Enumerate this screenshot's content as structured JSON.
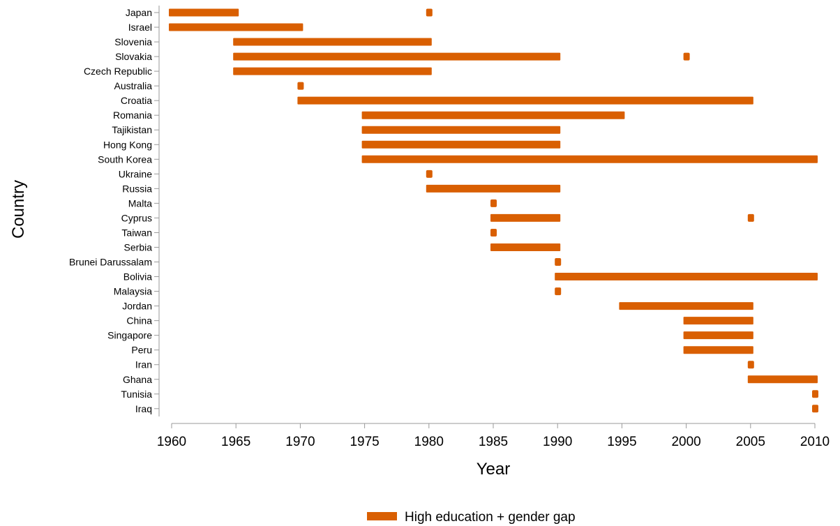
{
  "chart_data": {
    "type": "bar",
    "orientation": "horizontal-range",
    "title": "",
    "xlabel": "Year",
    "ylabel": "Country",
    "xlim": [
      1960,
      2010
    ],
    "xticks": [
      1960,
      1965,
      1970,
      1975,
      1980,
      1985,
      1990,
      1995,
      2000,
      2005,
      2010
    ],
    "grid": false,
    "legend_position": "bottom",
    "series": [
      {
        "name": "High education + gender gap",
        "color": "#d95f02",
        "rows": [
          {
            "country": "Japan",
            "ranges": [
              [
                1960,
                1965
              ],
              [
                1980,
                1980
              ]
            ]
          },
          {
            "country": "Israel",
            "ranges": [
              [
                1960,
                1970
              ]
            ]
          },
          {
            "country": "Slovenia",
            "ranges": [
              [
                1965,
                1980
              ]
            ]
          },
          {
            "country": "Slovakia",
            "ranges": [
              [
                1965,
                1990
              ],
              [
                2000,
                2000
              ]
            ]
          },
          {
            "country": "Czech Republic",
            "ranges": [
              [
                1965,
                1980
              ]
            ]
          },
          {
            "country": "Australia",
            "ranges": [
              [
                1970,
                1970
              ]
            ]
          },
          {
            "country": "Croatia",
            "ranges": [
              [
                1970,
                2005
              ]
            ]
          },
          {
            "country": "Romania",
            "ranges": [
              [
                1975,
                1995
              ]
            ]
          },
          {
            "country": "Tajikistan",
            "ranges": [
              [
                1975,
                1990
              ]
            ]
          },
          {
            "country": "Hong Kong",
            "ranges": [
              [
                1975,
                1990
              ]
            ]
          },
          {
            "country": "South Korea",
            "ranges": [
              [
                1975,
                2010
              ]
            ]
          },
          {
            "country": "Ukraine",
            "ranges": [
              [
                1980,
                1980
              ]
            ]
          },
          {
            "country": "Russia",
            "ranges": [
              [
                1980,
                1990
              ]
            ]
          },
          {
            "country": "Malta",
            "ranges": [
              [
                1985,
                1985
              ]
            ]
          },
          {
            "country": "Cyprus",
            "ranges": [
              [
                1985,
                1990
              ],
              [
                2005,
                2005
              ]
            ]
          },
          {
            "country": "Taiwan",
            "ranges": [
              [
                1985,
                1985
              ]
            ]
          },
          {
            "country": "Serbia",
            "ranges": [
              [
                1985,
                1990
              ]
            ]
          },
          {
            "country": "Brunei Darussalam",
            "ranges": [
              [
                1990,
                1990
              ]
            ]
          },
          {
            "country": "Bolivia",
            "ranges": [
              [
                1990,
                2010
              ]
            ]
          },
          {
            "country": "Malaysia",
            "ranges": [
              [
                1990,
                1990
              ]
            ]
          },
          {
            "country": "Jordan",
            "ranges": [
              [
                1995,
                2005
              ]
            ]
          },
          {
            "country": "China",
            "ranges": [
              [
                2000,
                2005
              ]
            ]
          },
          {
            "country": "Singapore",
            "ranges": [
              [
                2000,
                2005
              ]
            ]
          },
          {
            "country": "Peru",
            "ranges": [
              [
                2000,
                2005
              ]
            ]
          },
          {
            "country": "Iran",
            "ranges": [
              [
                2005,
                2005
              ]
            ]
          },
          {
            "country": "Ghana",
            "ranges": [
              [
                2005,
                2010
              ]
            ]
          },
          {
            "country": "Tunisia",
            "ranges": [
              [
                2010,
                2010
              ]
            ]
          },
          {
            "country": "Iraq",
            "ranges": [
              [
                2010,
                2010
              ]
            ]
          }
        ]
      }
    ]
  }
}
